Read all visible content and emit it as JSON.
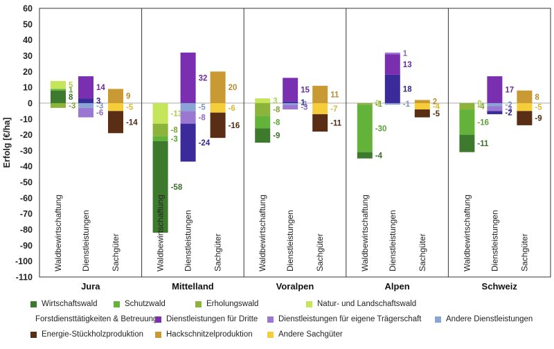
{
  "chart_data": {
    "type": "bar",
    "ylabel": "Erfolg [€/ha]",
    "ylim": [
      -110,
      60
    ],
    "yticks": [
      60,
      50,
      40,
      30,
      20,
      10,
      0,
      -10,
      -20,
      -30,
      -40,
      -50,
      -60,
      -70,
      -80,
      -90,
      -100,
      -110
    ],
    "groups": [
      {
        "name": "Jura",
        "bars": [
          {
            "label": "Waldbewirtschaftung",
            "segments": [
              {
                "category": "Wirtschaftswald",
                "value": 8
              },
              {
                "category": "Schutzwald",
                "value": 1
              },
              {
                "category": "Natur- und Landschaftswald",
                "value": 5
              },
              {
                "category": "Erholungswald",
                "value": -3
              }
            ]
          },
          {
            "label": "Dienstleistungen",
            "segments": [
              {
                "category": "Forstdiensttätigkeiten & Betreuung",
                "value": 3
              },
              {
                "category": "Dienstleistungen für Dritte",
                "value": 14
              },
              {
                "category": "Andere Dienstleistungen",
                "value": -3
              },
              {
                "category": "Dienstleistungen für eigene Trägerschaft",
                "value": -6
              }
            ]
          },
          {
            "label": "Sachgüter",
            "segments": [
              {
                "category": "Hackschnitzelproduktion",
                "value": 9
              },
              {
                "category": "Andere Sachgüter",
                "value": -5
              },
              {
                "category": "Energie-Stückholzproduktion",
                "value": -14
              }
            ]
          }
        ]
      },
      {
        "name": "Mittelland",
        "bars": [
          {
            "label": "Waldbewirtschaftung",
            "segments": [
              {
                "category": "Natur- und Landschaftswald",
                "value": -13
              },
              {
                "category": "Erholungswald",
                "value": -8
              },
              {
                "category": "Schutzwald",
                "value": -3
              },
              {
                "category": "Wirtschaftswald",
                "value": -58
              }
            ]
          },
          {
            "label": "Dienstleistungen",
            "segments": [
              {
                "category": "Dienstleistungen für Dritte",
                "value": 32
              },
              {
                "category": "Andere Dienstleistungen",
                "value": -5
              },
              {
                "category": "Dienstleistungen für eigene Trägerschaft",
                "value": -8
              },
              {
                "category": "Forstdiensttätigkeiten & Betreuung",
                "value": -24
              }
            ]
          },
          {
            "label": "Sachgüter",
            "segments": [
              {
                "category": "Hackschnitzelproduktion",
                "value": 20
              },
              {
                "category": "Andere Sachgüter",
                "value": -6
              },
              {
                "category": "Energie-Stückholzproduktion",
                "value": -16
              }
            ]
          }
        ]
      },
      {
        "name": "Voralpen",
        "bars": [
          {
            "label": "Waldbewirtschaftung",
            "segments": [
              {
                "category": "Natur- und Landschaftswald",
                "value": 3
              },
              {
                "category": "Erholungswald",
                "value": -8
              },
              {
                "category": "Schutzwald",
                "value": -8
              },
              {
                "category": "Wirtschaftswald",
                "value": -9
              }
            ]
          },
          {
            "label": "Dienstleistungen",
            "segments": [
              {
                "category": "Forstdiensttätigkeiten & Betreuung",
                "value": 1
              },
              {
                "category": "Dienstleistungen für Dritte",
                "value": 15
              },
              {
                "category": "Andere Dienstleistungen",
                "value": -1
              },
              {
                "category": "Dienstleistungen für eigene Trägerschaft",
                "value": -3
              }
            ]
          },
          {
            "label": "Sachgüter",
            "segments": [
              {
                "category": "Hackschnitzelproduktion",
                "value": 11
              },
              {
                "category": "Andere Sachgüter",
                "value": -7
              },
              {
                "category": "Energie-Stückholzproduktion",
                "value": -11
              }
            ]
          }
        ]
      },
      {
        "name": "Alpen",
        "bars": [
          {
            "label": "Waldbewirtschaftung",
            "segments": [
              {
                "category": "Natur- und Landschaftswald",
                "value": 0
              },
              {
                "category": "Erholungswald",
                "value": -1
              },
              {
                "category": "Schutzwald",
                "value": -30
              },
              {
                "category": "Wirtschaftswald",
                "value": -4
              }
            ]
          },
          {
            "label": "Dienstleistungen",
            "segments": [
              {
                "category": "Forstdiensttätigkeiten & Betreuung",
                "value": 18
              },
              {
                "category": "Dienstleistungen für Dritte",
                "value": 13
              },
              {
                "category": "Dienstleistungen für eigene Trägerschaft",
                "value": 1
              },
              {
                "category": "Andere Dienstleistungen",
                "value": -1
              }
            ]
          },
          {
            "label": "Sachgüter",
            "segments": [
              {
                "category": "Hackschnitzelproduktion",
                "value": 2
              },
              {
                "category": "Andere Sachgüter",
                "value": -4
              },
              {
                "category": "Energie-Stückholzproduktion",
                "value": -5
              }
            ]
          }
        ]
      },
      {
        "name": "Schweiz",
        "bars": [
          {
            "label": "Waldbewirtschaftung",
            "segments": [
              {
                "category": "Natur- und Landschaftswald",
                "value": 0
              },
              {
                "category": "Erholungswald",
                "value": -4
              },
              {
                "category": "Schutzwald",
                "value": -16
              },
              {
                "category": "Wirtschaftswald",
                "value": -11
              }
            ]
          },
          {
            "label": "Dienstleistungen",
            "segments": [
              {
                "category": "Dienstleistungen für Dritte",
                "value": 17
              },
              {
                "category": "Andere Dienstleistungen",
                "value": -2
              },
              {
                "category": "Dienstleistungen für eigene Trägerschaft",
                "value": -3
              },
              {
                "category": "Forstdiensttätigkeiten & Betreuung",
                "value": -2
              }
            ]
          },
          {
            "label": "Sachgüter",
            "segments": [
              {
                "category": "Hackschnitzelproduktion",
                "value": 8
              },
              {
                "category": "Andere Sachgüter",
                "value": -5
              },
              {
                "category": "Energie-Stückholzproduktion",
                "value": -9
              }
            ]
          }
        ]
      }
    ],
    "categories": [
      {
        "name": "Wirtschaftswald",
        "color": "#3e7a2e"
      },
      {
        "name": "Schutzwald",
        "color": "#63b33b"
      },
      {
        "name": "Erholungswald",
        "color": "#8cb33a"
      },
      {
        "name": "Natur- und Landschaftswald",
        "color": "#c5e55a"
      },
      {
        "name": "Forstdiensttätigkeiten & Betreuung",
        "color": "#3a2a9a"
      },
      {
        "name": "Dienstleistungen für Dritte",
        "color": "#7a2eb0"
      },
      {
        "name": "Dienstleistungen für eigene Trägerschaft",
        "color": "#9a78d2"
      },
      {
        "name": "Andere Dienstleistungen",
        "color": "#8aa4d6"
      },
      {
        "name": "Energie-Stückholzproduktion",
        "color": "#5a2e14"
      },
      {
        "name": "Hackschnitzelproduktion",
        "color": "#c99a34"
      },
      {
        "name": "Andere Sachgüter",
        "color": "#f5cc3a"
      }
    ],
    "legend_rows": [
      [
        "Wirtschaftswald",
        "Schutzwald",
        "Erholungswald",
        "Natur- und Landschaftswald"
      ],
      [
        "Forstdiensttätigkeiten & Betreuung",
        "Dienstleistungen für Dritte",
        "Dienstleistungen für eigene Trägerschaft",
        "Andere Dienstleistungen"
      ],
      [
        "Energie-Stückholzproduktion",
        "Hackschnitzelproduktion",
        "Andere Sachgüter"
      ]
    ],
    "legend_placement": "bottom",
    "grid": false
  }
}
